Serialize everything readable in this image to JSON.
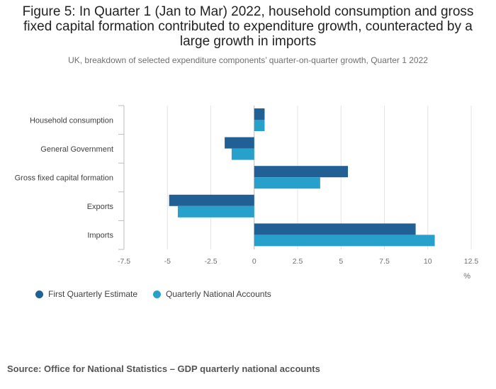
{
  "header": {
    "title": "Figure 5: In Quarter 1 (Jan to Mar) 2022, household consumption and gross fixed capital formation contributed to expenditure growth, counteracted by a large growth in imports",
    "subtitle": "UK, breakdown of selected expenditure components’ quarter-on-quarter growth, Quarter 1 2022"
  },
  "chart_data": {
    "type": "bar",
    "orientation": "horizontal",
    "title": "Figure 5: In Quarter 1 (Jan to Mar) 2022, household consumption and gross fixed capital formation contributed to expenditure growth, counteracted by a large growth in imports",
    "subtitle": "UK, breakdown of selected expenditure components’ quarter-on-quarter growth, Quarter 1 2022",
    "categories": [
      "Household consumption",
      "General Government",
      "Gross fixed capital formation",
      "Exports",
      "Imports"
    ],
    "series": [
      {
        "name": "First Quarterly Estimate",
        "color": "#206095",
        "values": [
          0.6,
          -1.7,
          5.4,
          -4.9,
          9.3
        ]
      },
      {
        "name": "Quarterly National Accounts",
        "color": "#27a0cc",
        "values": [
          0.6,
          -1.3,
          3.8,
          -4.4,
          10.4
        ]
      }
    ],
    "xlim": [
      -7.5,
      12.5
    ],
    "ticks": [
      -7.5,
      -5,
      -2.5,
      0,
      2.5,
      5,
      7.5,
      10,
      12.5
    ],
    "tick_labels": [
      "-7.5",
      "-5",
      "-2.5",
      "0",
      "2.5",
      "5",
      "7.5",
      "10",
      "12.5"
    ],
    "xlabel": "%",
    "ylabel": "",
    "grid": true,
    "legend_position": "bottom-left"
  },
  "source": "Source: Office for National Statistics – GDP quarterly national accounts"
}
